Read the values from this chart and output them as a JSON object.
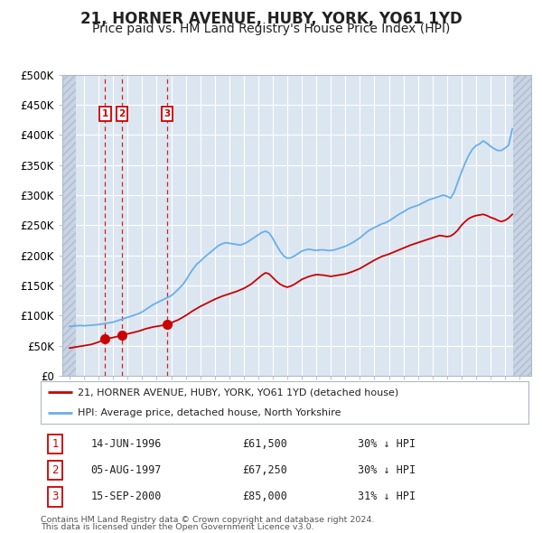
{
  "title": "21, HORNER AVENUE, HUBY, YORK, YO61 1YD",
  "subtitle": "Price paid vs. HM Land Registry's House Price Index (HPI)",
  "ylim": [
    0,
    500000
  ],
  "yticks": [
    0,
    50000,
    100000,
    150000,
    200000,
    250000,
    300000,
    350000,
    400000,
    450000,
    500000
  ],
  "ytick_labels": [
    "£0",
    "£50K",
    "£100K",
    "£150K",
    "£200K",
    "£250K",
    "£300K",
    "£350K",
    "£400K",
    "£450K",
    "£500K"
  ],
  "xlim_start": 1993.5,
  "xlim_end": 2025.8,
  "hatch_left_end": 1994.42,
  "hatch_right_start": 2024.58,
  "background_color": "#ffffff",
  "plot_bg_color": "#dce6f1",
  "grid_color": "#ffffff",
  "hatch_color": "#c8d4e3",
  "title_fontsize": 12,
  "subtitle_fontsize": 10,
  "legend_label_red": "21, HORNER AVENUE, HUBY, YORK, YO61 1YD (detached house)",
  "legend_label_blue": "HPI: Average price, detached house, North Yorkshire",
  "transactions": [
    {
      "num": 1,
      "date": "14-JUN-1996",
      "price": 61500,
      "year": 1996.45,
      "pct": "30%"
    },
    {
      "num": 2,
      "date": "05-AUG-1997",
      "price": 67250,
      "year": 1997.6,
      "pct": "30%"
    },
    {
      "num": 3,
      "date": "15-SEP-2000",
      "price": 85000,
      "year": 2000.71,
      "pct": "31%"
    }
  ],
  "footer_line1": "Contains HM Land Registry data © Crown copyright and database right 2024.",
  "footer_line2": "This data is licensed under the Open Government Licence v3.0.",
  "red_line_color": "#cc0000",
  "blue_line_color": "#6aaee8",
  "hpi_data_years": [
    1994.0,
    1994.25,
    1994.5,
    1994.75,
    1995.0,
    1995.25,
    1995.5,
    1995.75,
    1996.0,
    1996.25,
    1996.5,
    1996.75,
    1997.0,
    1997.25,
    1997.5,
    1997.75,
    1998.0,
    1998.25,
    1998.5,
    1998.75,
    1999.0,
    1999.25,
    1999.5,
    1999.75,
    2000.0,
    2000.25,
    2000.5,
    2000.75,
    2001.0,
    2001.25,
    2001.5,
    2001.75,
    2002.0,
    2002.25,
    2002.5,
    2002.75,
    2003.0,
    2003.25,
    2003.5,
    2003.75,
    2004.0,
    2004.25,
    2004.5,
    2004.75,
    2005.0,
    2005.25,
    2005.5,
    2005.75,
    2006.0,
    2006.25,
    2006.5,
    2006.75,
    2007.0,
    2007.25,
    2007.5,
    2007.75,
    2008.0,
    2008.25,
    2008.5,
    2008.75,
    2009.0,
    2009.25,
    2009.5,
    2009.75,
    2010.0,
    2010.25,
    2010.5,
    2010.75,
    2011.0,
    2011.25,
    2011.5,
    2011.75,
    2012.0,
    2012.25,
    2012.5,
    2012.75,
    2013.0,
    2013.25,
    2013.5,
    2013.75,
    2014.0,
    2014.25,
    2014.5,
    2014.75,
    2015.0,
    2015.25,
    2015.5,
    2015.75,
    2016.0,
    2016.25,
    2016.5,
    2016.75,
    2017.0,
    2017.25,
    2017.5,
    2017.75,
    2018.0,
    2018.25,
    2018.5,
    2018.75,
    2019.0,
    2019.25,
    2019.5,
    2019.75,
    2020.0,
    2020.25,
    2020.5,
    2020.75,
    2021.0,
    2021.25,
    2021.5,
    2021.75,
    2022.0,
    2022.25,
    2022.5,
    2022.75,
    2023.0,
    2023.25,
    2023.5,
    2023.75,
    2024.0,
    2024.25,
    2024.5
  ],
  "hpi_data_values": [
    82000,
    82500,
    83000,
    83500,
    83000,
    83500,
    84000,
    84500,
    85000,
    86000,
    87000,
    88000,
    89000,
    91000,
    93000,
    95000,
    97000,
    99000,
    101000,
    103000,
    106000,
    110000,
    114000,
    118000,
    121000,
    124000,
    127000,
    130000,
    133000,
    138000,
    144000,
    150000,
    158000,
    168000,
    177000,
    185000,
    190000,
    196000,
    201000,
    206000,
    211000,
    216000,
    219000,
    221000,
    220000,
    219000,
    218000,
    217000,
    219000,
    222000,
    226000,
    230000,
    234000,
    238000,
    240000,
    237000,
    228000,
    217000,
    207000,
    199000,
    195000,
    196000,
    199000,
    203000,
    207000,
    209000,
    210000,
    209000,
    208000,
    209000,
    209000,
    208000,
    208000,
    209000,
    211000,
    213000,
    215000,
    218000,
    221000,
    225000,
    229000,
    234000,
    239000,
    243000,
    246000,
    249000,
    252000,
    254000,
    257000,
    261000,
    265000,
    269000,
    272000,
    276000,
    279000,
    281000,
    283000,
    286000,
    289000,
    292000,
    294000,
    296000,
    298000,
    300000,
    298000,
    295000,
    305000,
    322000,
    338000,
    353000,
    366000,
    376000,
    382000,
    385000,
    390000,
    386000,
    381000,
    377000,
    374000,
    374000,
    378000,
    383000,
    410000
  ],
  "red_line_years": [
    1994.0,
    1994.5,
    1995.0,
    1995.5,
    1996.0,
    1996.45,
    1996.9,
    1997.25,
    1997.6,
    1997.9,
    1998.25,
    1998.75,
    1999.25,
    1999.75,
    2000.25,
    2000.71,
    2001.0,
    2001.5,
    2002.0,
    2002.5,
    2003.0,
    2003.5,
    2004.0,
    2004.5,
    2005.0,
    2005.5,
    2006.0,
    2006.5,
    2007.0,
    2007.25,
    2007.5,
    2007.75,
    2008.0,
    2008.25,
    2008.5,
    2008.75,
    2009.0,
    2009.25,
    2009.5,
    2009.75,
    2010.0,
    2010.5,
    2011.0,
    2011.5,
    2012.0,
    2012.5,
    2013.0,
    2013.5,
    2014.0,
    2014.5,
    2015.0,
    2015.5,
    2016.0,
    2016.5,
    2017.0,
    2017.5,
    2018.0,
    2018.5,
    2019.0,
    2019.5,
    2020.0,
    2020.25,
    2020.5,
    2020.75,
    2021.0,
    2021.25,
    2021.5,
    2021.75,
    2022.0,
    2022.25,
    2022.5,
    2022.75,
    2023.0,
    2023.25,
    2023.5,
    2023.75,
    2024.0,
    2024.25,
    2024.5
  ],
  "red_line_values": [
    46000,
    48000,
    50000,
    52000,
    56000,
    61500,
    63000,
    65000,
    67250,
    69000,
    71000,
    74000,
    78000,
    81000,
    83000,
    85000,
    88000,
    93000,
    100000,
    108000,
    115000,
    121000,
    127000,
    132000,
    136000,
    140000,
    145000,
    152000,
    162000,
    167000,
    171000,
    169000,
    163000,
    157000,
    152000,
    149000,
    147000,
    149000,
    152000,
    156000,
    160000,
    165000,
    168000,
    167000,
    165000,
    167000,
    169000,
    173000,
    178000,
    185000,
    192000,
    198000,
    202000,
    207000,
    212000,
    217000,
    221000,
    225000,
    229000,
    233000,
    231000,
    232000,
    236000,
    242000,
    250000,
    256000,
    261000,
    264000,
    266000,
    267000,
    268000,
    266000,
    263000,
    261000,
    258000,
    256000,
    258000,
    262000,
    268000
  ]
}
